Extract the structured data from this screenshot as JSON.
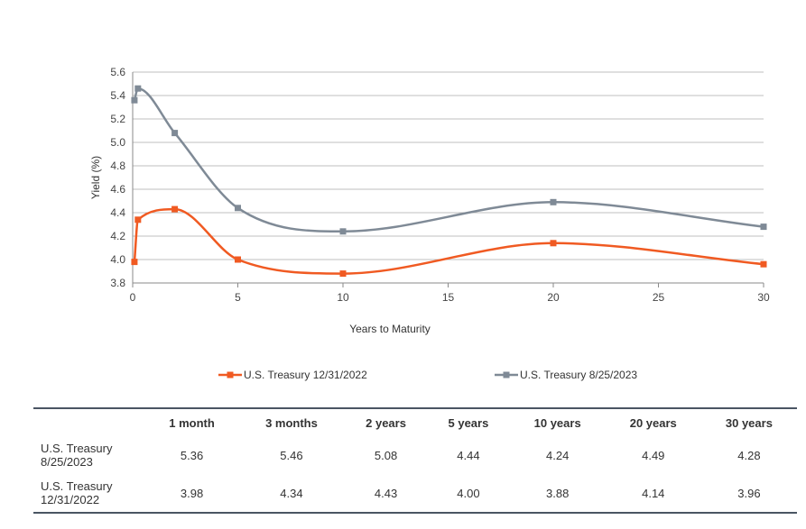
{
  "chart_data": {
    "type": "line",
    "xlabel": "Years to Maturity",
    "ylabel": "Yield (%)",
    "xlim": [
      0,
      30
    ],
    "ylim": [
      3.8,
      5.6
    ],
    "x_ticks": [
      0,
      5,
      10,
      15,
      20,
      25,
      30
    ],
    "y_ticks": [
      3.8,
      4.0,
      4.2,
      4.4,
      4.6,
      4.8,
      5.0,
      5.2,
      5.4,
      5.6
    ],
    "grid": "horizontal",
    "legend_position": "bottom",
    "series": [
      {
        "name": "U.S. Treasury 12/31/2022",
        "color": "#f05a22",
        "x": [
          0.0833,
          0.25,
          2,
          5,
          10,
          20,
          30
        ],
        "y": [
          3.98,
          4.34,
          4.43,
          4.0,
          3.88,
          4.14,
          3.96
        ]
      },
      {
        "name": "U.S. Treasury 8/25/2023",
        "color": "#7f8a96",
        "x": [
          0.0833,
          0.25,
          2,
          5,
          10,
          20,
          30
        ],
        "y": [
          5.36,
          5.46,
          5.08,
          4.44,
          4.24,
          4.49,
          4.28
        ]
      }
    ]
  },
  "table": {
    "headers": [
      "1 month",
      "3 months",
      "2 years",
      "5 years",
      "10 years",
      "20 years",
      "30 years"
    ],
    "rows": [
      {
        "label": [
          "U.S. Treasury",
          "8/25/2023"
        ],
        "values": [
          "5.36",
          "5.46",
          "5.08",
          "4.44",
          "4.24",
          "4.49",
          "4.28"
        ]
      },
      {
        "label": [
          "U.S. Treasury",
          "12/31/2022"
        ],
        "values": [
          "3.98",
          "4.34",
          "4.43",
          "4.00",
          "3.88",
          "4.14",
          "3.96"
        ]
      }
    ]
  }
}
